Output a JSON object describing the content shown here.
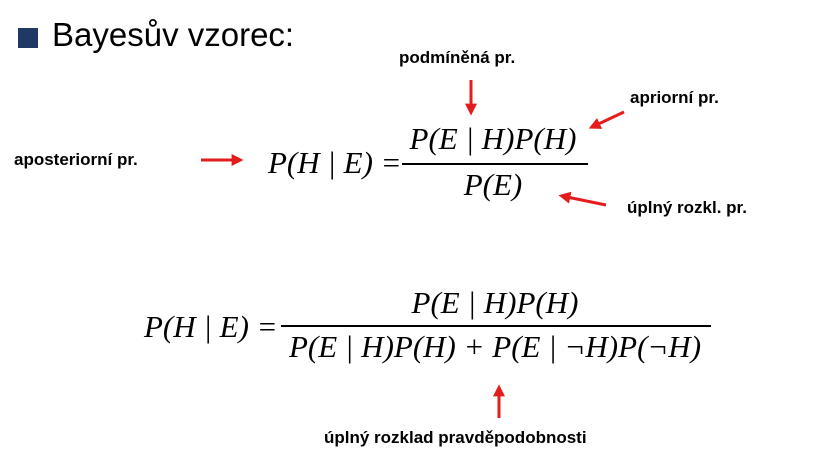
{
  "heading": {
    "text": "Bayesův vzorec:"
  },
  "labels": {
    "conditional": "podmíněná pr.",
    "prior": "apriorní pr.",
    "posterior": "aposteriorní pr.",
    "marginal": "úplný rozkl. pr.",
    "total_probability": "úplný rozklad pravděpodobnosti"
  },
  "formula1": {
    "lhs": "P(H | E) =",
    "numerator": "P(E | H)P(H)",
    "denominator": "P(E)"
  },
  "formula2": {
    "lhs": "P(H | E) =",
    "numerator": "P(E | H)P(H)",
    "denominator": "P(E | H)P(H) + P(E | ¬H)P(¬H)"
  },
  "colors": {
    "arrow": "#e31c1c",
    "bullet": "#1f3864",
    "text": "#000000"
  }
}
